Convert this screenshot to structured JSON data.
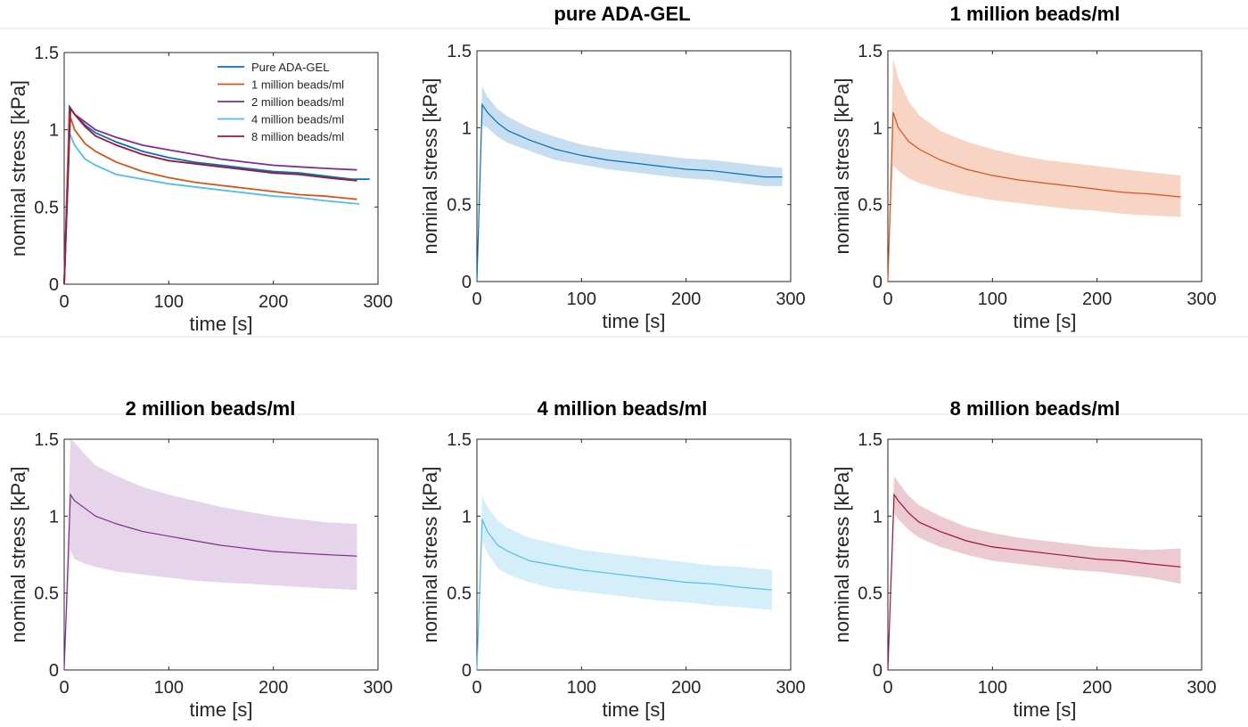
{
  "chart_data": [
    {
      "type": "line",
      "title": "",
      "xlabel": "time [s]",
      "ylabel": "nominal stress [kPa]",
      "xlim": [
        0,
        300
      ],
      "ylim": [
        0,
        1.5
      ],
      "xticks": [
        "0",
        "100",
        "200",
        "300"
      ],
      "yticks": [
        "0",
        "0.5",
        "1",
        "1.5"
      ],
      "legend": "top-right",
      "series": [
        {
          "name": "Pure ADA-GEL",
          "color": "#0072BD",
          "x": [
            0,
            5,
            10,
            20,
            30,
            50,
            75,
            100,
            125,
            150,
            175,
            200,
            225,
            250,
            275,
            292
          ],
          "y": [
            0,
            1.15,
            1.1,
            1.03,
            0.98,
            0.92,
            0.86,
            0.82,
            0.79,
            0.77,
            0.75,
            0.73,
            0.72,
            0.7,
            0.68,
            0.68
          ]
        },
        {
          "name": "1 million beads/ml",
          "color": "#D95319",
          "x": [
            0,
            5,
            10,
            20,
            30,
            50,
            75,
            100,
            125,
            150,
            175,
            200,
            225,
            250,
            280
          ],
          "y": [
            0,
            1.1,
            1.0,
            0.91,
            0.86,
            0.79,
            0.73,
            0.69,
            0.66,
            0.64,
            0.62,
            0.6,
            0.58,
            0.57,
            0.55
          ]
        },
        {
          "name": "2 million beads/ml",
          "color": "#7E2F8E",
          "x": [
            0,
            6,
            10,
            20,
            30,
            50,
            75,
            100,
            125,
            150,
            175,
            200,
            225,
            250,
            280
          ],
          "y": [
            0,
            1.14,
            1.1,
            1.05,
            1.0,
            0.95,
            0.9,
            0.87,
            0.84,
            0.81,
            0.79,
            0.77,
            0.76,
            0.75,
            0.74
          ]
        },
        {
          "name": "4 million beads/ml",
          "color": "#4DBEEE",
          "x": [
            0,
            5,
            10,
            20,
            30,
            50,
            75,
            100,
            125,
            150,
            175,
            200,
            225,
            250,
            282
          ],
          "y": [
            0,
            0.98,
            0.9,
            0.81,
            0.77,
            0.71,
            0.68,
            0.65,
            0.63,
            0.61,
            0.59,
            0.57,
            0.56,
            0.54,
            0.52
          ]
        },
        {
          "name": "8 million beads/ml",
          "color": "#A2142F",
          "x": [
            0,
            6,
            10,
            20,
            30,
            50,
            75,
            100,
            125,
            150,
            175,
            200,
            225,
            250,
            280
          ],
          "y": [
            0,
            1.14,
            1.1,
            1.02,
            0.96,
            0.9,
            0.84,
            0.8,
            0.78,
            0.76,
            0.74,
            0.72,
            0.71,
            0.69,
            0.67
          ]
        }
      ]
    },
    {
      "type": "area",
      "title": "pure ADA-GEL",
      "xlabel": "time [s]",
      "ylabel": "nominal stress [kPa]",
      "xlim": [
        0,
        300
      ],
      "ylim": [
        0,
        1.5
      ],
      "xticks": [
        "0",
        "100",
        "200",
        "300"
      ],
      "yticks": [
        "0",
        "0.5",
        "1",
        "1.5"
      ],
      "color": "#0072BD",
      "fill": "#c6def0",
      "x": [
        0,
        5,
        10,
        20,
        30,
        50,
        75,
        100,
        125,
        150,
        175,
        200,
        225,
        250,
        275,
        292
      ],
      "mean": [
        0,
        1.15,
        1.1,
        1.03,
        0.98,
        0.92,
        0.86,
        0.82,
        0.79,
        0.77,
        0.75,
        0.73,
        0.72,
        0.7,
        0.68,
        0.68
      ],
      "upper": [
        0,
        1.27,
        1.2,
        1.12,
        1.07,
        1.0,
        0.94,
        0.89,
        0.86,
        0.84,
        0.82,
        0.8,
        0.79,
        0.77,
        0.75,
        0.74
      ],
      "lower": [
        0,
        1.02,
        1.0,
        0.94,
        0.9,
        0.85,
        0.79,
        0.76,
        0.73,
        0.71,
        0.69,
        0.67,
        0.66,
        0.64,
        0.62,
        0.62
      ]
    },
    {
      "type": "area",
      "title": "1 million beads/ml",
      "xlabel": "time [s]",
      "ylabel": "nominal stress [kPa]",
      "xlim": [
        0,
        300
      ],
      "ylim": [
        0,
        1.5
      ],
      "xticks": [
        "0",
        "100",
        "200",
        "300"
      ],
      "yticks": [
        "0",
        "0.5",
        "1",
        "1.5"
      ],
      "color": "#D95319",
      "fill": "#f7d4c4",
      "x": [
        0,
        5,
        10,
        20,
        30,
        50,
        75,
        100,
        125,
        150,
        175,
        200,
        225,
        250,
        280
      ],
      "mean": [
        0,
        1.1,
        1.0,
        0.91,
        0.86,
        0.79,
        0.73,
        0.69,
        0.66,
        0.64,
        0.62,
        0.6,
        0.58,
        0.57,
        0.55
      ],
      "upper": [
        0,
        1.45,
        1.32,
        1.17,
        1.08,
        0.98,
        0.91,
        0.86,
        0.82,
        0.79,
        0.77,
        0.75,
        0.73,
        0.71,
        0.69
      ],
      "lower": [
        0,
        0.76,
        0.72,
        0.67,
        0.64,
        0.6,
        0.56,
        0.53,
        0.51,
        0.49,
        0.47,
        0.46,
        0.44,
        0.43,
        0.42
      ]
    },
    {
      "type": "area",
      "title": "2 million beads/ml",
      "xlabel": "time [s]",
      "ylabel": "nominal stress [kPa]",
      "xlim": [
        0,
        300
      ],
      "ylim": [
        0,
        1.5
      ],
      "xticks": [
        "0",
        "100",
        "200",
        "300"
      ],
      "yticks": [
        "0",
        "0.5",
        "1",
        "1.5"
      ],
      "color": "#7E2F8E",
      "fill": "#e6d4ea",
      "x": [
        0,
        6,
        10,
        20,
        30,
        50,
        75,
        100,
        125,
        150,
        175,
        200,
        225,
        250,
        280
      ],
      "mean": [
        0,
        1.14,
        1.1,
        1.05,
        1.0,
        0.95,
        0.9,
        0.87,
        0.84,
        0.81,
        0.79,
        0.77,
        0.76,
        0.75,
        0.74
      ],
      "upper": [
        0,
        1.5,
        1.48,
        1.4,
        1.33,
        1.26,
        1.19,
        1.14,
        1.1,
        1.06,
        1.03,
        1.0,
        0.98,
        0.96,
        0.95
      ],
      "lower": [
        0,
        0.78,
        0.72,
        0.69,
        0.67,
        0.64,
        0.62,
        0.6,
        0.58,
        0.57,
        0.56,
        0.55,
        0.54,
        0.53,
        0.52
      ]
    },
    {
      "type": "area",
      "title": "4 million beads/ml",
      "xlabel": "time [s]",
      "ylabel": "nominal stress [kPa]",
      "xlim": [
        0,
        300
      ],
      "ylim": [
        0,
        1.5
      ],
      "xticks": [
        "0",
        "100",
        "200",
        "300"
      ],
      "yticks": [
        "0",
        "0.5",
        "1",
        "1.5"
      ],
      "color": "#4DBEEE",
      "fill": "#d4eefa",
      "x": [
        0,
        5,
        10,
        20,
        30,
        50,
        75,
        100,
        125,
        150,
        175,
        200,
        225,
        250,
        282
      ],
      "mean": [
        0,
        0.98,
        0.9,
        0.81,
        0.77,
        0.71,
        0.68,
        0.65,
        0.63,
        0.61,
        0.59,
        0.57,
        0.56,
        0.54,
        0.52
      ],
      "upper": [
        0,
        1.13,
        1.06,
        0.97,
        0.92,
        0.86,
        0.82,
        0.78,
        0.76,
        0.74,
        0.72,
        0.7,
        0.68,
        0.67,
        0.65
      ],
      "lower": [
        0,
        0.84,
        0.76,
        0.66,
        0.62,
        0.57,
        0.53,
        0.51,
        0.49,
        0.47,
        0.45,
        0.44,
        0.42,
        0.41,
        0.39
      ]
    },
    {
      "type": "area",
      "title": "8 million beads/ml",
      "xlabel": "time [s]",
      "ylabel": "nominal stress [kPa]",
      "xlim": [
        0,
        300
      ],
      "ylim": [
        0,
        1.5
      ],
      "xticks": [
        "0",
        "100",
        "200",
        "300"
      ],
      "yticks": [
        "0",
        "0.5",
        "1",
        "1.5"
      ],
      "color": "#A2142F",
      "fill": "#ebcbd1",
      "x": [
        0,
        6,
        10,
        20,
        30,
        50,
        75,
        100,
        125,
        150,
        175,
        200,
        225,
        250,
        280
      ],
      "mean": [
        0,
        1.14,
        1.1,
        1.02,
        0.96,
        0.9,
        0.84,
        0.8,
        0.78,
        0.76,
        0.74,
        0.72,
        0.71,
        0.69,
        0.67
      ],
      "upper": [
        0,
        1.26,
        1.22,
        1.13,
        1.07,
        1.0,
        0.93,
        0.89,
        0.86,
        0.84,
        0.82,
        0.8,
        0.79,
        0.78,
        0.79
      ],
      "lower": [
        0,
        1.02,
        0.98,
        0.91,
        0.86,
        0.8,
        0.75,
        0.71,
        0.69,
        0.67,
        0.65,
        0.64,
        0.62,
        0.6,
        0.56
      ]
    }
  ]
}
